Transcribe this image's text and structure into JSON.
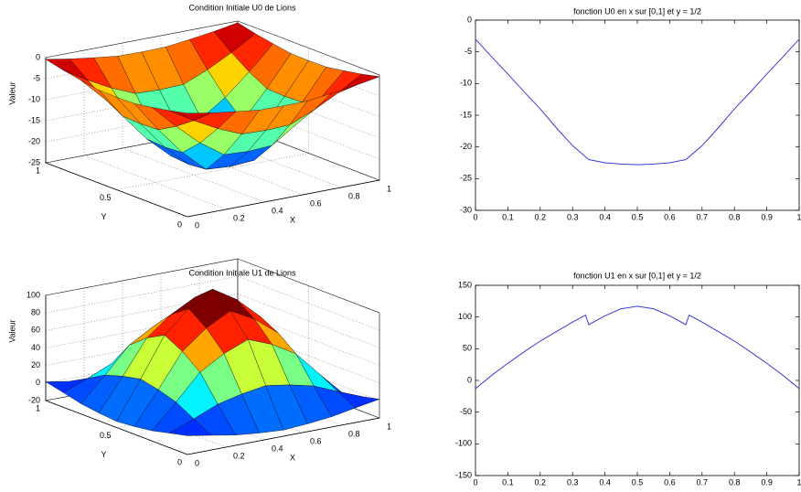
{
  "chart_data": [
    {
      "type": "surface",
      "title": "Condition Initiale U0 de Lions",
      "xlabel": "X",
      "ylabel": "Y",
      "zlabel": "Valeur",
      "x": [
        0,
        0.125,
        0.25,
        0.375,
        0.5,
        0.625,
        0.75,
        0.875,
        1
      ],
      "y": [
        0,
        0.125,
        0.25,
        0.375,
        0.5,
        0.625,
        0.75,
        0.875,
        1
      ],
      "z": [
        [
          -0.4,
          -1.4,
          -2.2,
          -2.9,
          -3,
          -2.9,
          -2.2,
          -1.4,
          -0.4
        ],
        [
          -1.4,
          -4.8,
          -7.8,
          -10.2,
          -10.4,
          -10.2,
          -7.8,
          -4.8,
          -1.4
        ],
        [
          -2.2,
          -7.8,
          -12.8,
          -16.7,
          -17,
          -16.7,
          -12.8,
          -7.8,
          -2.2
        ],
        [
          -2.9,
          -10.2,
          -16.7,
          -21.8,
          -22.2,
          -21.8,
          -16.7,
          -10.2,
          -2.9
        ],
        [
          -3,
          -10.4,
          -17,
          -22.2,
          -22.7,
          -22.2,
          -17,
          -10.4,
          -3
        ],
        [
          -2.9,
          -10.2,
          -16.7,
          -21.8,
          -22.2,
          -21.8,
          -16.7,
          -10.2,
          -2.9
        ],
        [
          -2.2,
          -7.8,
          -12.8,
          -16.7,
          -17,
          -16.7,
          -12.8,
          -7.8,
          -2.2
        ],
        [
          -1.4,
          -4.8,
          -7.8,
          -10.2,
          -10.4,
          -10.2,
          -7.8,
          -4.8,
          -1.4
        ],
        [
          -0.4,
          -1.4,
          -2.2,
          -2.9,
          -3,
          -2.9,
          -2.2,
          -1.4,
          -0.4
        ]
      ],
      "xlim": [
        0,
        1
      ],
      "ylim": [
        0,
        1
      ],
      "zlim": [
        -25,
        0
      ],
      "xticks": [
        0,
        0.2,
        0.4,
        0.6,
        0.8,
        1
      ],
      "yticks": [
        0,
        0.5,
        1
      ],
      "zticks": [
        -25,
        -20,
        -15,
        -10,
        -5,
        0
      ],
      "grid": true,
      "colormap": "jet"
    },
    {
      "type": "line",
      "title": "fonction U0 en x sur [0,1] et y = 1/2",
      "x": [
        0,
        0.05,
        0.1,
        0.15,
        0.2,
        0.25,
        0.3,
        0.35,
        0.4,
        0.45,
        0.5,
        0.55,
        0.6,
        0.65,
        0.7,
        0.75,
        0.8,
        0.85,
        0.9,
        0.95,
        1
      ],
      "values": [
        -3,
        -5.8,
        -8.5,
        -11.3,
        -14,
        -17,
        -19.8,
        -22,
        -22.5,
        -22.7,
        -22.8,
        -22.7,
        -22.5,
        -22,
        -19.8,
        -17,
        -14,
        -11.3,
        -8.5,
        -5.8,
        -3
      ],
      "color": "#3b3bd6",
      "xlim": [
        0,
        1
      ],
      "xticks": [
        0,
        0.1,
        0.2,
        0.3,
        0.4,
        0.5,
        0.6,
        0.7,
        0.8,
        0.9,
        1
      ],
      "ylim": [
        -30,
        0
      ],
      "yticks": [
        -30,
        -25,
        -20,
        -15,
        -10,
        -5,
        0
      ]
    },
    {
      "type": "surface",
      "title": "Condition Initiale U1 de Lions",
      "xlabel": "X",
      "ylabel": "Y",
      "zlabel": "Valeur",
      "x": [
        0,
        0.125,
        0.25,
        0.375,
        0.5,
        0.625,
        0.75,
        0.875,
        1
      ],
      "y": [
        0,
        0.125,
        0.25,
        0.375,
        0.5,
        0.625,
        0.75,
        0.875,
        1
      ],
      "z": [
        [
          1.4,
          -3.3,
          -8.3,
          -11.1,
          -13,
          -11.1,
          -8.3,
          -3.3,
          1.4
        ],
        [
          -3.3,
          7.7,
          19.2,
          25.6,
          30,
          25.6,
          19.2,
          7.7,
          -3.3
        ],
        [
          -8.3,
          19.2,
          48.1,
          64.1,
          75,
          64.1,
          48.1,
          19.2,
          -8.3
        ],
        [
          -11.1,
          25.6,
          64.1,
          85.5,
          100,
          85.5,
          64.1,
          25.6,
          -11.1
        ],
        [
          -13,
          30,
          75,
          100,
          117,
          100,
          75,
          30,
          -13
        ],
        [
          -11.1,
          25.6,
          64.1,
          85.5,
          100,
          85.5,
          64.1,
          25.6,
          -11.1
        ],
        [
          -8.3,
          19.2,
          48.1,
          64.1,
          75,
          64.1,
          48.1,
          19.2,
          -8.3
        ],
        [
          -3.3,
          7.7,
          19.2,
          25.6,
          30,
          25.6,
          19.2,
          7.7,
          -3.3
        ],
        [
          1.4,
          -3.3,
          -8.3,
          -11.1,
          -13,
          -11.1,
          -8.3,
          -3.3,
          1.4
        ]
      ],
      "xlim": [
        0,
        1
      ],
      "ylim": [
        0,
        1
      ],
      "zlim": [
        -20,
        100
      ],
      "xticks": [
        0,
        0.2,
        0.4,
        0.6,
        0.8,
        1
      ],
      "yticks": [
        0,
        0.5,
        1
      ],
      "zticks": [
        -20,
        0,
        20,
        40,
        60,
        80,
        100
      ],
      "grid": true,
      "colormap": "jet"
    },
    {
      "type": "line",
      "title": "fonction U1 en x sur [0,1] et y = 1/2",
      "x": [
        0,
        0.05,
        0.1,
        0.15,
        0.2,
        0.25,
        0.3,
        0.34,
        0.35,
        0.4,
        0.45,
        0.5,
        0.55,
        0.6,
        0.65,
        0.66,
        0.7,
        0.75,
        0.8,
        0.85,
        0.9,
        0.95,
        1
      ],
      "values": [
        -13,
        8,
        27,
        45,
        62,
        77,
        92,
        103,
        88,
        102,
        113,
        117,
        113,
        102,
        88,
        103,
        92,
        77,
        62,
        45,
        27,
        8,
        -13
      ],
      "color": "#3b3bd6",
      "xlim": [
        0,
        1
      ],
      "xticks": [
        0,
        0.1,
        0.2,
        0.3,
        0.4,
        0.5,
        0.6,
        0.7,
        0.8,
        0.9,
        1
      ],
      "ylim": [
        -150,
        150
      ],
      "yticks": [
        -150,
        -100,
        -50,
        0,
        50,
        100,
        150
      ]
    }
  ]
}
